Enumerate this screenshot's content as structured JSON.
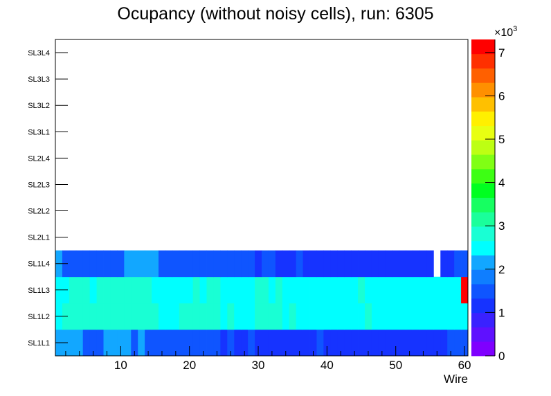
{
  "chart_data": {
    "type": "heatmap",
    "title": "Ocupancy (without noisy cells), run: 6305",
    "xlabel": "Wire",
    "ylabel": "",
    "xlim": [
      0.5,
      60.5
    ],
    "x_ticks": [
      10,
      20,
      30,
      40,
      50,
      60
    ],
    "y_categories": [
      "SL1L1",
      "SL1L2",
      "SL1L3",
      "SL1L4",
      "SL2L1",
      "SL2L2",
      "SL2L3",
      "SL2L4",
      "SL3L1",
      "SL3L2",
      "SL3L3",
      "SL3L4"
    ],
    "z_range": [
      0,
      7300
    ],
    "z_ticks": [
      0,
      1,
      2,
      3,
      4,
      5,
      6,
      7
    ],
    "z_multiplier_label": "×10",
    "z_multiplier_exponent": "3",
    "rows": {
      "SL1L1": [
        2000,
        2000,
        2000,
        2000,
        1400,
        1400,
        1400,
        2000,
        2000,
        2000,
        2000,
        1400,
        2000,
        1400,
        1400,
        1400,
        1400,
        1400,
        1400,
        1400,
        1400,
        1400,
        1400,
        1400,
        1100,
        1400,
        1100,
        1100,
        1400,
        1100,
        1100,
        1100,
        1100,
        1100,
        1100,
        1100,
        1100,
        1100,
        1400,
        1100,
        1100,
        1100,
        1100,
        1100,
        1100,
        1100,
        1100,
        1100,
        1100,
        1100,
        1100,
        1100,
        1100,
        1100,
        1100,
        1100,
        1100,
        1400,
        1400,
        1400
      ],
      "SL1L2": [
        2400,
        2900,
        2900,
        2900,
        2900,
        2900,
        2900,
        2900,
        2900,
        2900,
        2900,
        2900,
        2900,
        2900,
        2900,
        2600,
        2600,
        2600,
        2900,
        2900,
        2900,
        2900,
        2900,
        2900,
        2600,
        2900,
        2600,
        2600,
        2600,
        2900,
        2900,
        2900,
        2900,
        2600,
        2900,
        2600,
        2600,
        2600,
        2600,
        2600,
        2600,
        2600,
        2600,
        2600,
        2600,
        2900,
        2600,
        2600,
        2600,
        2600,
        2600,
        2600,
        2600,
        2600,
        2600,
        2600,
        2600,
        2600,
        2600,
        2600
      ],
      "SL1L3": [
        2400,
        2400,
        2900,
        2900,
        2900,
        2600,
        2900,
        2900,
        2900,
        2900,
        2900,
        2900,
        2900,
        2900,
        2600,
        2600,
        2600,
        2600,
        2600,
        2600,
        2900,
        2600,
        2900,
        2900,
        2600,
        2600,
        2600,
        2600,
        2600,
        2900,
        2900,
        2600,
        2900,
        2600,
        2600,
        2600,
        2600,
        2600,
        2600,
        2600,
        2600,
        2600,
        2600,
        2600,
        2900,
        2600,
        2600,
        2600,
        2600,
        2600,
        2600,
        2600,
        2600,
        2600,
        2600,
        2600,
        2600,
        2600,
        2600,
        7300
      ],
      "SL1L4": [
        2000,
        1400,
        1400,
        1400,
        1400,
        1400,
        1400,
        1400,
        1400,
        1400,
        2000,
        2000,
        2000,
        2000,
        2000,
        1400,
        1400,
        1400,
        1400,
        1400,
        1400,
        1400,
        1400,
        1400,
        1400,
        1400,
        1400,
        1400,
        1400,
        1100,
        1400,
        1400,
        1100,
        1100,
        1100,
        1400,
        1100,
        1100,
        1100,
        1100,
        1100,
        1100,
        1100,
        1100,
        1100,
        1100,
        1100,
        1100,
        1100,
        1100,
        1100,
        1100,
        1100,
        1100,
        1100,
        0,
        1100,
        1100,
        1400,
        1400
      ],
      "SL2L1": [],
      "SL2L2": [],
      "SL2L3": [],
      "SL2L4": [],
      "SL3L1": [],
      "SL3L2": [],
      "SL3L3": [],
      "SL3L4": []
    },
    "colorbar_colors": [
      "#7f00ff",
      "#5f11ff",
      "#3a22ff",
      "#1633ff",
      "#0f55ff",
      "#0f7eff",
      "#12a7ff",
      "#00ffff",
      "#19ffd4",
      "#1aff9b",
      "#16ff61",
      "#00ff20",
      "#3dff14",
      "#80ff14",
      "#bdff13",
      "#e8ff12",
      "#fff000",
      "#ffc000",
      "#ff9000",
      "#ff6000",
      "#ff3000",
      "#ff0000"
    ],
    "legend": "none",
    "grid": false
  }
}
